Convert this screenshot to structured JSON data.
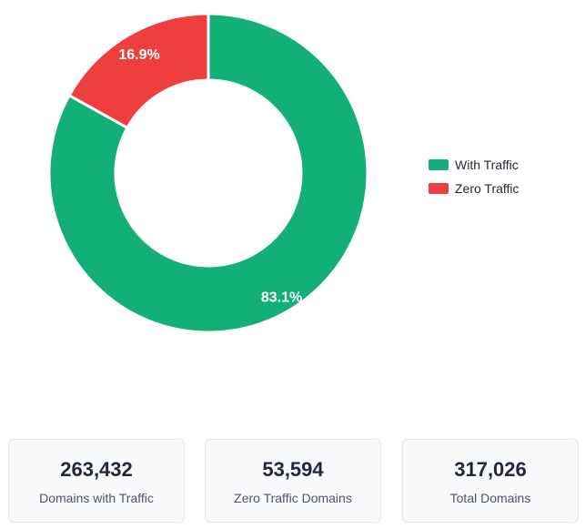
{
  "chart_data": {
    "type": "pie",
    "variant": "doughnut",
    "categories": [
      "With Traffic",
      "Zero Traffic"
    ],
    "values": [
      263432,
      53594
    ],
    "percent_labels": [
      "83.1%",
      "16.9%"
    ],
    "colors": [
      "#12b076",
      "#ef3e3e"
    ],
    "legend_position": "right"
  },
  "legend": {
    "items": [
      {
        "label": "With Traffic",
        "color": "#12b076"
      },
      {
        "label": "Zero Traffic",
        "color": "#ef3e3e"
      }
    ]
  },
  "stats": [
    {
      "value": "263,432",
      "label": "Domains with Traffic"
    },
    {
      "value": "53,594",
      "label": "Zero Traffic Domains"
    },
    {
      "value": "317,026",
      "label": "Total Domains"
    }
  ]
}
